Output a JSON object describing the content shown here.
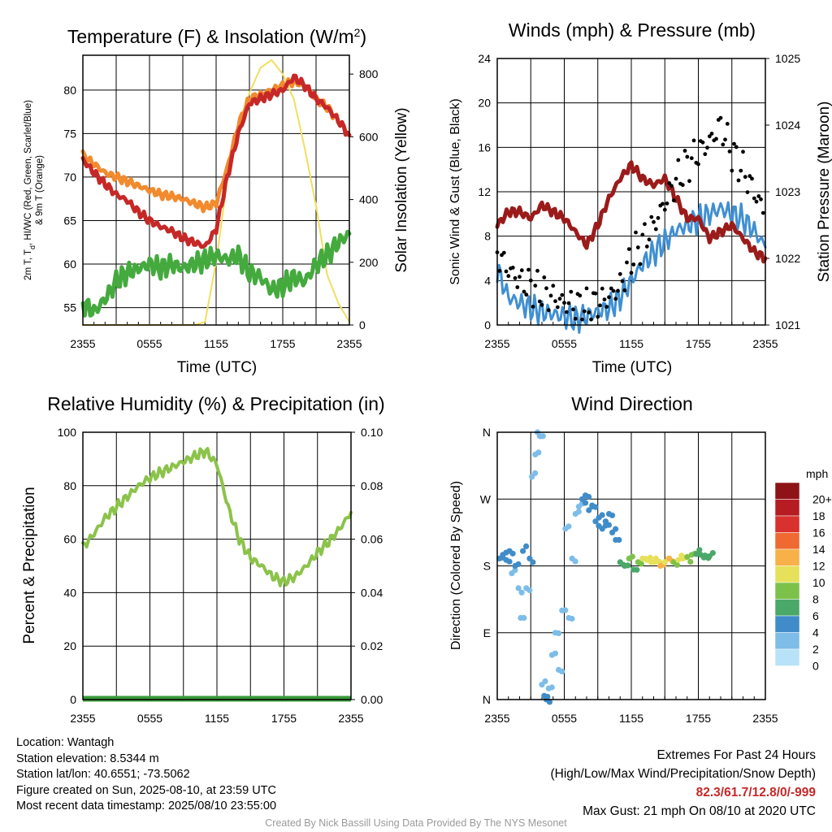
{
  "chart_data": [
    {
      "type": "line",
      "title": "Temperature (F) & Insolation (W/m²)",
      "xlabel": "Time (UTC)",
      "ylabel": "2m T, T_d, HI/WC (Red, Green, Scarlet/Blue) & 9m T (Orange)",
      "y2label": "Solar Insolation (Yellow)",
      "x_ticks": [
        "2355",
        "0555",
        "1155",
        "1755",
        "2355"
      ],
      "ylim": [
        53,
        84
      ],
      "y_ticks": [
        55,
        60,
        65,
        70,
        75,
        80
      ],
      "y2lim": [
        0,
        860
      ],
      "y2_ticks": [
        0,
        200,
        400,
        600,
        800
      ],
      "grid": true,
      "x_hours": [
        0,
        1,
        2,
        3,
        4,
        5,
        6,
        7,
        8,
        9,
        10,
        11,
        12,
        13,
        14,
        15,
        16,
        17,
        18,
        19,
        20,
        21,
        22,
        23,
        24
      ],
      "series": [
        {
          "name": "2m T",
          "color": "#c62828",
          "axis": "left",
          "values": [
            72,
            70.5,
            69.2,
            68,
            67.3,
            66,
            65,
            64.3,
            63.8,
            63,
            62.5,
            62,
            64,
            70,
            75,
            78.5,
            79,
            79.5,
            80,
            81.5,
            80.5,
            79,
            78,
            76.5,
            74.8
          ]
        },
        {
          "name": "9m T",
          "color": "#f28a2e",
          "axis": "left",
          "values": [
            72.5,
            71.5,
            70.5,
            70,
            69.5,
            69,
            68.5,
            68,
            67.8,
            67.5,
            67,
            66.5,
            67,
            71,
            76,
            79,
            79.5,
            80,
            80.5,
            81,
            80.5,
            79,
            78,
            76.5,
            74.8
          ]
        },
        {
          "name": "T_d",
          "color": "#44aa3e",
          "axis": "left",
          "values": [
            55.5,
            54.5,
            56,
            58,
            59,
            59.5,
            60,
            59.5,
            60,
            59.5,
            60,
            60.5,
            61,
            60.5,
            61,
            59,
            58.5,
            57,
            57.5,
            58.5,
            58,
            60,
            61,
            62.5,
            63.5
          ]
        },
        {
          "name": "Solar Insolation",
          "color": "#f2de5e",
          "axis": "right",
          "values": [
            0,
            0,
            0,
            0,
            0,
            0,
            0,
            0,
            0,
            0,
            0,
            10,
            200,
            460,
            640,
            740,
            820,
            845,
            800,
            720,
            560,
            380,
            160,
            70,
            10
          ]
        }
      ]
    },
    {
      "type": "line",
      "title": "Winds (mph) & Pressure (mb)",
      "xlabel": "Time (UTC)",
      "ylabel": "Sonic Wind & Gust (Blue, Black)",
      "y2label": "Station Pressure (Maroon)",
      "x_ticks": [
        "2355",
        "0555",
        "1155",
        "1755",
        "2355"
      ],
      "ylim": [
        0,
        24
      ],
      "y_ticks": [
        0,
        4,
        8,
        12,
        16,
        20,
        24
      ],
      "y2lim": [
        1021,
        1025
      ],
      "y2_ticks": [
        1021,
        1022,
        1023,
        1024,
        1025
      ],
      "grid": true,
      "x_hours": [
        0,
        1,
        2,
        3,
        4,
        5,
        6,
        7,
        8,
        9,
        10,
        11,
        12,
        13,
        14,
        15,
        16,
        17,
        18,
        19,
        20,
        21,
        22,
        23,
        24
      ],
      "series": [
        {
          "name": "Sonic Wind",
          "color": "#3f8fd2",
          "axis": "left",
          "values": [
            5,
            2.5,
            2,
            1.5,
            1.2,
            1,
            0.8,
            0.5,
            0.8,
            1.2,
            1.5,
            2.5,
            4,
            5.5,
            6.5,
            7.5,
            8.5,
            9,
            9.5,
            10,
            10.5,
            10,
            9.5,
            8.5,
            7
          ]
        },
        {
          "name": "Gust",
          "color": "#000000",
          "axis": "left",
          "style": "dots",
          "values": [
            6.5,
            5,
            4,
            3.5,
            3,
            2.5,
            2,
            1.8,
            1.5,
            2,
            2.5,
            3.5,
            6,
            7.5,
            9,
            11,
            13,
            14.5,
            15.5,
            16.5,
            18,
            15.5,
            14,
            12,
            10
          ]
        },
        {
          "name": "Station Pressure",
          "color": "#9b1b1b",
          "axis": "right",
          "values": [
            1022.5,
            1022.7,
            1022.7,
            1022.6,
            1022.8,
            1022.7,
            1022.6,
            1022.4,
            1022.2,
            1022.5,
            1022.9,
            1023.2,
            1023.4,
            1023.2,
            1023.1,
            1023.2,
            1022.9,
            1022.6,
            1022.6,
            1022.3,
            1022.4,
            1022.5,
            1022.3,
            1022.1,
            1022
          ]
        }
      ]
    },
    {
      "type": "line",
      "title": "Relative Humidity (%) & Precipitation (in)",
      "xlabel": "",
      "ylabel": "Percent & Precipitation",
      "x_ticks": [
        "2355",
        "0555",
        "1155",
        "1755",
        "2355"
      ],
      "ylim": [
        0,
        100
      ],
      "y_ticks": [
        0,
        20,
        40,
        60,
        80,
        100
      ],
      "y2lim": [
        0,
        0.1
      ],
      "y2_ticks": [
        "0.00",
        "0.02",
        "0.04",
        "0.06",
        "0.08",
        "0.10"
      ],
      "grid": true,
      "x_hours": [
        0,
        1,
        2,
        3,
        4,
        5,
        6,
        7,
        8,
        9,
        10,
        11,
        12,
        13,
        14,
        15,
        16,
        17,
        18,
        19,
        20,
        21,
        22,
        23,
        24
      ],
      "series": [
        {
          "name": "Relative Humidity",
          "color": "#8bc34a",
          "axis": "left",
          "values": [
            57,
            62,
            68,
            72,
            76,
            80,
            83,
            85,
            87,
            89,
            91,
            93,
            88,
            72,
            60,
            53,
            50,
            46,
            44,
            46,
            50,
            55,
            59,
            64,
            70
          ]
        },
        {
          "name": "Precipitation",
          "color": "#3a9a3a",
          "axis": "right",
          "values": [
            0,
            0,
            0,
            0,
            0,
            0,
            0,
            0,
            0,
            0,
            0,
            0,
            0,
            0,
            0,
            0,
            0,
            0,
            0,
            0,
            0,
            0,
            0,
            0,
            0
          ]
        }
      ]
    },
    {
      "type": "scatter",
      "title": "Wind Direction",
      "ylabel": "Direction (Colored By Speed)",
      "x_ticks": [
        "2355",
        "0555",
        "1155",
        "1755",
        "2355"
      ],
      "y_ticks": [
        "N",
        "E",
        "S",
        "W",
        "N"
      ],
      "ylim": [
        0,
        360
      ],
      "grid": true,
      "legend_title": "mph",
      "legend_labels": [
        "0",
        "2",
        "4",
        "6",
        "8",
        "10",
        "12",
        "14",
        "16",
        "18",
        "20+"
      ],
      "legend_colors": [
        "#b8e2f7",
        "#7dbde8",
        "#3f8cc9",
        "#4aa869",
        "#7cc24a",
        "#e6e05a",
        "#f7b148",
        "#ee6a32",
        "#d9312d",
        "#b51d23",
        "#8e1317"
      ],
      "points": [
        [
          0.2,
          190,
          3
        ],
        [
          0.5,
          195,
          4
        ],
        [
          0.8,
          188,
          3
        ],
        [
          1.1,
          200,
          4
        ],
        [
          1.3,
          170,
          2
        ],
        [
          1.6,
          180,
          3
        ],
        [
          1.9,
          150,
          2
        ],
        [
          2.1,
          110,
          1
        ],
        [
          2.3,
          200,
          3
        ],
        [
          2.6,
          150,
          2
        ],
        [
          2.9,
          190,
          3
        ],
        [
          3.1,
          300,
          1
        ],
        [
          3.4,
          330,
          2
        ],
        [
          3.6,
          360,
          1
        ],
        [
          3.8,
          355,
          2
        ],
        [
          4.0,
          20,
          2
        ],
        [
          4.2,
          5,
          3
        ],
        [
          4.4,
          0,
          3
        ],
        [
          4.6,
          15,
          2
        ],
        [
          4.9,
          60,
          2
        ],
        [
          5.2,
          90,
          2
        ],
        [
          5.5,
          40,
          2
        ],
        [
          5.8,
          120,
          2
        ],
        [
          6.1,
          230,
          2
        ],
        [
          6.4,
          110,
          2
        ],
        [
          6.7,
          190,
          2
        ],
        [
          7.0,
          250,
          2
        ],
        [
          7.3,
          260,
          2
        ],
        [
          7.6,
          270,
          3
        ],
        [
          7.9,
          275,
          3
        ],
        [
          8.2,
          255,
          3
        ],
        [
          8.5,
          260,
          3
        ],
        [
          8.8,
          240,
          4
        ],
        [
          9.1,
          245,
          4
        ],
        [
          9.4,
          230,
          4
        ],
        [
          9.7,
          240,
          4
        ],
        [
          10.0,
          250,
          4
        ],
        [
          10.3,
          225,
          4
        ],
        [
          10.6,
          215,
          4
        ],
        [
          11.0,
          185,
          6
        ],
        [
          11.4,
          180,
          6
        ],
        [
          11.8,
          190,
          7
        ],
        [
          12.2,
          175,
          6
        ],
        [
          12.6,
          185,
          8
        ],
        [
          13.0,
          190,
          9
        ],
        [
          13.4,
          188,
          9
        ],
        [
          13.8,
          185,
          10
        ],
        [
          14.2,
          190,
          10
        ],
        [
          14.6,
          180,
          11
        ],
        [
          15.0,
          185,
          9
        ],
        [
          15.4,
          190,
          11
        ],
        [
          15.8,
          185,
          8
        ],
        [
          16.2,
          188,
          9
        ],
        [
          16.6,
          190,
          10
        ],
        [
          17.0,
          192,
          8
        ],
        [
          17.4,
          195,
          7
        ],
        [
          17.8,
          196,
          6
        ],
        [
          18.2,
          195,
          6
        ],
        [
          18.6,
          194,
          5
        ],
        [
          19.0,
          193,
          5
        ]
      ]
    }
  ],
  "info": {
    "location": "Location: Wantagh",
    "elevation": "Station elevation: 8.5344 m",
    "latlon": "Station lat/lon: 40.6551; -73.5062",
    "created": "Figure created on Sun, 2025-08-10, at 23:59 UTC",
    "recent": "Most recent data timestamp: 2025/08/10 23:55:00"
  },
  "extremes": {
    "title": "Extremes For Past 24 Hours",
    "subtitle": "(High/Low/Max Wind/Precipitation/Snow Depth)",
    "values": "82.3/61.7/12.8/0/-999",
    "gust": "Max Gust: 21 mph On 08/10 at 2020 UTC"
  },
  "credit": "Created By Nick Bassill Using Data Provided By The NYS Mesonet"
}
